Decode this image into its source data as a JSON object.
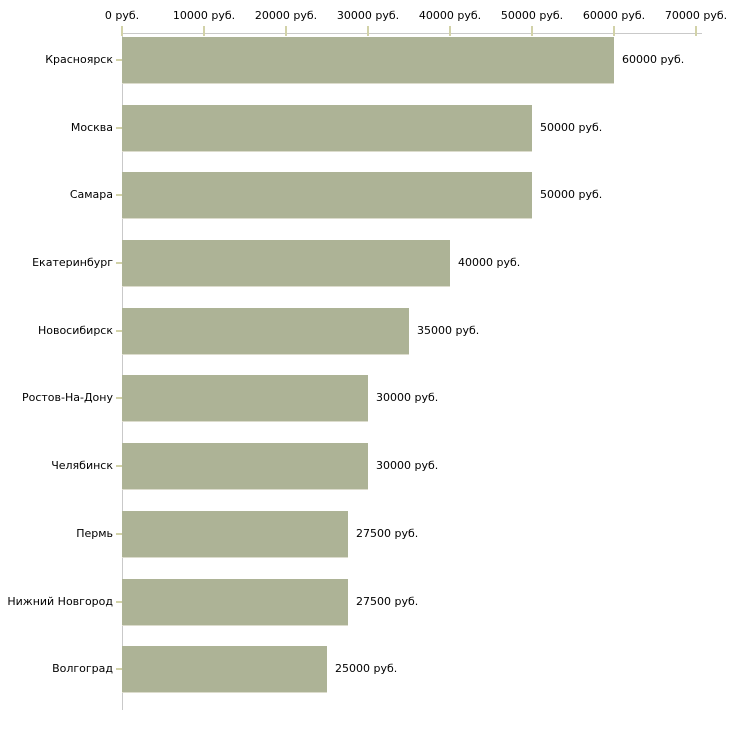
{
  "chart_data": {
    "type": "bar",
    "orientation": "horizontal",
    "title": "",
    "xlabel": "",
    "ylabel": "",
    "xlim": [
      0,
      70000
    ],
    "grid": false,
    "legend": false,
    "x_tick_labels": [
      "0 руб.",
      "10000 руб.",
      "20000 руб.",
      "30000 руб.",
      "40000 руб.",
      "50000 руб.",
      "60000 руб.",
      "70000 руб."
    ],
    "x_tick_values": [
      0,
      10000,
      20000,
      30000,
      40000,
      50000,
      60000,
      70000
    ],
    "categories": [
      "Красноярск",
      "Москва",
      "Самара",
      "Екатеринбург",
      "Новосибирск",
      "Ростов-На-Дону",
      "Челябинск",
      "Пермь",
      "Нижний Новгород",
      "Волгоград"
    ],
    "values": [
      60000,
      50000,
      50000,
      40000,
      35000,
      30000,
      30000,
      27500,
      27500,
      25000
    ],
    "value_labels": [
      "60000 руб.",
      "50000 руб.",
      "50000 руб.",
      "40000 руб.",
      "35000 руб.",
      "30000 руб.",
      "30000 руб.",
      "27500 руб.",
      "27500 руб.",
      "25000 руб."
    ]
  },
  "colors": {
    "bar": "#adb396",
    "axis_line": "#c9c9c9",
    "tick_mark": "#d2d2a8",
    "text": "#000000",
    "background": "#ffffff"
  }
}
